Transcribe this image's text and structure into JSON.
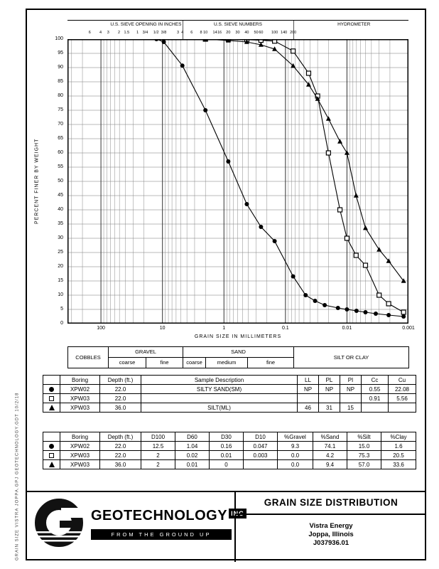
{
  "page": {
    "side_stamp": "GRAIN SIZE  VISTRA JOPPA.GPJ  GEOTECHNOLOGY.GDT  10/2/18"
  },
  "chart": {
    "top_groups": {
      "inches": "U.S. SIEVE OPENING IN INCHES",
      "numbers": "U.S. SIEVE NUMBERS",
      "hydrometer": "HYDROMETER"
    },
    "ylabel": "PERCENT FINER BY WEIGHT",
    "xlabel": "GRAIN SIZE IN MILLIMETERS",
    "sieve_labels": [
      {
        "text": "6",
        "mm": 152.4
      },
      {
        "text": "4",
        "mm": 101.6
      },
      {
        "text": "3",
        "mm": 76.2
      },
      {
        "text": "2",
        "mm": 50.8
      },
      {
        "text": "1.5",
        "mm": 38.1
      },
      {
        "text": "1",
        "mm": 25.4
      },
      {
        "text": "3/4",
        "mm": 19.05
      },
      {
        "text": "1/2",
        "mm": 12.7
      },
      {
        "text": "3/8",
        "mm": 9.525
      },
      {
        "text": "3",
        "mm": 5.6
      },
      {
        "text": "4",
        "mm": 4.75
      },
      {
        "text": "6",
        "mm": 3.35
      },
      {
        "text": "8",
        "mm": 2.36
      },
      {
        "text": "10",
        "mm": 2.0
      },
      {
        "text": "14",
        "mm": 1.4
      },
      {
        "text": "16",
        "mm": 1.18
      },
      {
        "text": "20",
        "mm": 0.85
      },
      {
        "text": "30",
        "mm": 0.6
      },
      {
        "text": "40",
        "mm": 0.425
      },
      {
        "text": "50",
        "mm": 0.3
      },
      {
        "text": "60",
        "mm": 0.25
      },
      {
        "text": "100",
        "mm": 0.15
      },
      {
        "text": "140",
        "mm": 0.106
      },
      {
        "text": "200",
        "mm": 0.075
      }
    ],
    "x_ticks": [
      {
        "label": "100",
        "value": 100
      },
      {
        "label": "10",
        "value": 10
      },
      {
        "label": "1",
        "value": 1
      },
      {
        "label": "0.1",
        "value": 0.1
      },
      {
        "label": "0.01",
        "value": 0.01
      },
      {
        "label": "0.001",
        "value": 0.001
      }
    ],
    "y_ticks": [
      100,
      95,
      90,
      85,
      80,
      75,
      70,
      65,
      60,
      55,
      50,
      45,
      40,
      35,
      30,
      25,
      20,
      15,
      10,
      5,
      0
    ]
  },
  "chart_data": {
    "type": "line",
    "title": "GRAIN SIZE DISTRIBUTION",
    "x_scale": "log",
    "x_range": [
      350,
      0.001
    ],
    "y_range": [
      0,
      100
    ],
    "xlabel": "GRAIN SIZE IN MILLIMETERS",
    "ylabel": "PERCENT FINER BY WEIGHT",
    "grid": true,
    "series": [
      {
        "name": "XPW02 @ 22.0 ft",
        "marker": "circle",
        "points": [
          [
            12.5,
            100
          ],
          [
            9.5,
            99
          ],
          [
            4.75,
            90.7
          ],
          [
            2,
            75
          ],
          [
            0.85,
            57
          ],
          [
            0.425,
            42
          ],
          [
            0.25,
            34
          ],
          [
            0.15,
            29
          ],
          [
            0.075,
            16.6
          ],
          [
            0.047,
            10
          ],
          [
            0.033,
            8
          ],
          [
            0.023,
            6.5
          ],
          [
            0.014,
            5.5
          ],
          [
            0.01,
            5
          ],
          [
            0.007,
            4.5
          ],
          [
            0.005,
            4
          ],
          [
            0.0034,
            3.5
          ],
          [
            0.0021,
            3
          ],
          [
            0.0012,
            2.5
          ]
        ]
      },
      {
        "name": "XPW03 @ 22.0 ft",
        "marker": "square",
        "points": [
          [
            2,
            100
          ],
          [
            0.85,
            100
          ],
          [
            0.425,
            99.8
          ],
          [
            0.25,
            99.6
          ],
          [
            0.15,
            99.3
          ],
          [
            0.075,
            95.8
          ],
          [
            0.042,
            88
          ],
          [
            0.03,
            80
          ],
          [
            0.02,
            60
          ],
          [
            0.013,
            40
          ],
          [
            0.01,
            30
          ],
          [
            0.0071,
            24
          ],
          [
            0.005,
            20.5
          ],
          [
            0.003,
            10
          ],
          [
            0.0021,
            7
          ],
          [
            0.0012,
            4
          ]
        ]
      },
      {
        "name": "XPW03 @ 36.0 ft",
        "marker": "triangle",
        "points": [
          [
            2,
            100
          ],
          [
            0.85,
            99.5
          ],
          [
            0.425,
            99
          ],
          [
            0.25,
            98
          ],
          [
            0.15,
            96.5
          ],
          [
            0.075,
            90.6
          ],
          [
            0.042,
            84
          ],
          [
            0.03,
            79
          ],
          [
            0.02,
            72
          ],
          [
            0.013,
            64
          ],
          [
            0.01,
            60
          ],
          [
            0.0071,
            45
          ],
          [
            0.005,
            33.6
          ],
          [
            0.003,
            26
          ],
          [
            0.0021,
            22
          ],
          [
            0.0012,
            15
          ]
        ]
      }
    ]
  },
  "classification": {
    "cobbles": "COBBLES",
    "gravel": "GRAVEL",
    "gravel_coarse": "coarse",
    "gravel_fine": "fine",
    "sand": "SAND",
    "sand_coarse": "coarse",
    "sand_medium": "medium",
    "sand_fine": "fine",
    "silt_or_clay": "SILT OR CLAY"
  },
  "sample_table": {
    "headers": {
      "marker": "",
      "boring": "Boring",
      "depth": "Depth (ft.)",
      "desc": "Sample Description",
      "ll": "LL",
      "pl": "PL",
      "pi": "PI",
      "cc": "Cc",
      "cu": "Cu"
    },
    "rows": [
      {
        "marker": "circle",
        "boring": "XPW02",
        "depth": "22.0",
        "desc": "SILTY SAND(SM)",
        "ll": "NP",
        "pl": "NP",
        "pi": "NP",
        "cc": "0.55",
        "cu": "22.08"
      },
      {
        "marker": "square",
        "boring": "XPW03",
        "depth": "22.0",
        "desc": "",
        "ll": "",
        "pl": "",
        "pi": "",
        "cc": "0.91",
        "cu": "5.56"
      },
      {
        "marker": "triangle",
        "boring": "XPW03",
        "depth": "36.0",
        "desc": "SILT(ML)",
        "ll": "46",
        "pl": "31",
        "pi": "15",
        "cc": "",
        "cu": ""
      }
    ]
  },
  "gradation_table": {
    "headers": {
      "marker": "",
      "boring": "Boring",
      "depth": "Depth (ft.)",
      "d100": "D100",
      "d60": "D60",
      "d30": "D30",
      "d10": "D10",
      "gravel": "%Gravel",
      "sand": "%Sand",
      "silt": "%Silt",
      "clay": "%Clay"
    },
    "rows": [
      {
        "marker": "circle",
        "boring": "XPW02",
        "depth": "22.0",
        "d100": "12.5",
        "d60": "1.04",
        "d30": "0.16",
        "d10": "0.047",
        "gravel": "9.3",
        "sand": "74.1",
        "silt": "15.0",
        "clay": "1.6"
      },
      {
        "marker": "square",
        "boring": "XPW03",
        "depth": "22.0",
        "d100": "2",
        "d60": "0.02",
        "d30": "0.01",
        "d10": "0.003",
        "gravel": "0.0",
        "sand": "4.2",
        "silt": "75.3",
        "clay": "20.5"
      },
      {
        "marker": "triangle",
        "boring": "XPW03",
        "depth": "36.0",
        "d100": "2",
        "d60": "0.01",
        "d30": "0",
        "d10": "",
        "gravel": "0.0",
        "sand": "9.4",
        "silt": "57.0",
        "clay": "33.6"
      }
    ]
  },
  "title_block": {
    "company": "GEOTECHNOLOGY",
    "company_inc": "INC",
    "tagline": "FROM THE GROUND UP",
    "title": "GRAIN SIZE DISTRIBUTION",
    "client": "Vistra Energy",
    "location": "Joppa, Illinois",
    "project_number": "J037936.01"
  }
}
